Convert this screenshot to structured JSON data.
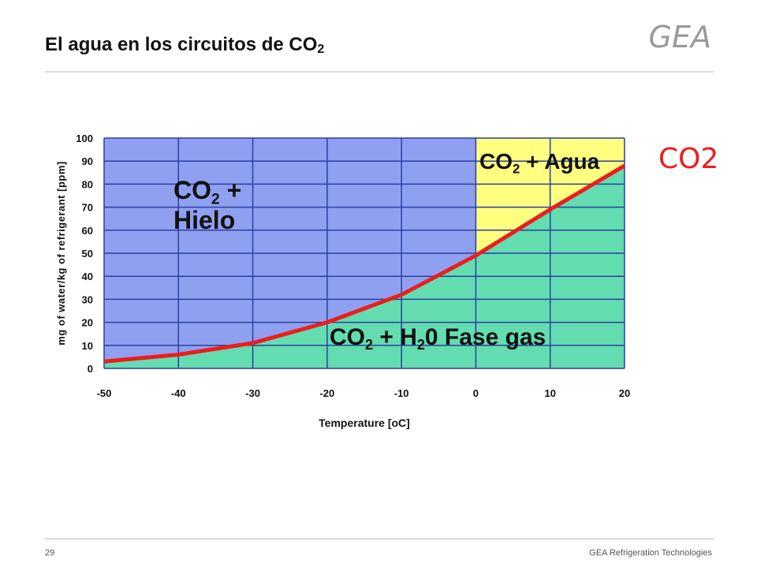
{
  "header": {
    "title": "El agua en los circuitos de CO",
    "title_sub": "2",
    "logo": "GEA"
  },
  "footer": {
    "page": "29",
    "company": "GEA Refrigeration Technologies"
  },
  "chart_data": {
    "type": "line",
    "x_label": "Temperature [oC]",
    "y_label": "mg of water/kg of refrigerant [ppm]",
    "x": [
      -50,
      -40,
      -30,
      -20,
      -10,
      0,
      10,
      20
    ],
    "series": [
      {
        "name": "CO2",
        "color": "#ee1c1c",
        "values": [
          3,
          6,
          11,
          20,
          32,
          49,
          69,
          88
        ]
      }
    ],
    "xlim": [
      -50,
      20
    ],
    "xticks": [
      -50,
      -40,
      -30,
      -20,
      -10,
      0,
      10,
      20
    ],
    "ylim": [
      0,
      100
    ],
    "yticks": [
      0,
      10,
      20,
      30,
      40,
      50,
      60,
      70,
      80,
      90,
      100
    ],
    "grid": true,
    "liquid_from_x": 0,
    "region_colors": {
      "ice": "#8fa0f0",
      "liquid": "#ffff80",
      "gas": "#63dcb0",
      "grid": "#2b3fa0"
    },
    "annotations": [
      {
        "lines": [
          [
            "CO",
            "2",
            " +"
          ],
          [
            "Hielo"
          ]
        ]
      },
      {
        "lines": [
          [
            "CO",
            "2",
            " + Agua"
          ]
        ]
      },
      {
        "lines": [
          [
            "CO",
            "2",
            " + H",
            "2",
            "0 Fase gas"
          ]
        ]
      }
    ]
  }
}
